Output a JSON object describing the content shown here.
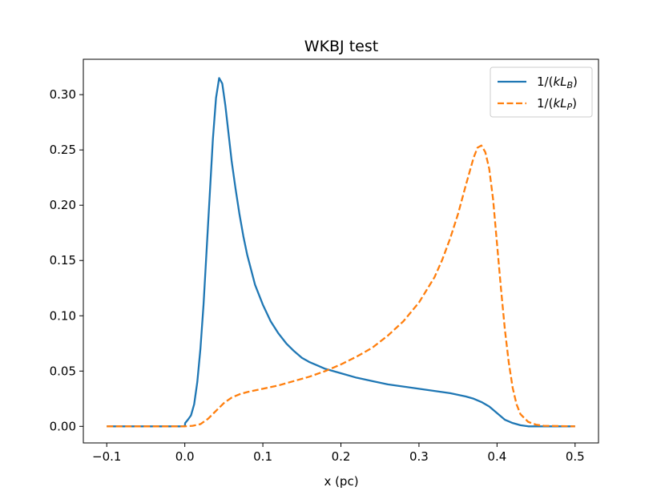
{
  "chart_data": {
    "type": "line",
    "title": "WKBJ test",
    "xlabel": "x (pc)",
    "ylabel": "",
    "xlim": [
      -0.13,
      0.53
    ],
    "ylim": [
      -0.015,
      0.332
    ],
    "x_ticks": [
      -0.1,
      0.0,
      0.1,
      0.2,
      0.3,
      0.4,
      0.5
    ],
    "x_tick_labels": [
      "−0.1",
      "0.0",
      "0.1",
      "0.2",
      "0.3",
      "0.4",
      "0.5"
    ],
    "y_ticks": [
      0.0,
      0.05,
      0.1,
      0.15,
      0.2,
      0.25,
      0.3
    ],
    "y_tick_labels": [
      "0.00",
      "0.05",
      "0.10",
      "0.15",
      "0.20",
      "0.25",
      "0.30"
    ],
    "grid": false,
    "legend_position": "top-right",
    "series": [
      {
        "name": "1/(kL_B)",
        "color": "#1f77b4",
        "dash": "solid",
        "points": [
          [
            -0.1,
            0.0
          ],
          [
            -0.05,
            0.0
          ],
          [
            0.0,
            0.0
          ],
          [
            0.0005,
            0.003
          ],
          [
            0.004,
            0.006
          ],
          [
            0.008,
            0.01
          ],
          [
            0.012,
            0.02
          ],
          [
            0.016,
            0.04
          ],
          [
            0.02,
            0.07
          ],
          [
            0.024,
            0.11
          ],
          [
            0.028,
            0.16
          ],
          [
            0.032,
            0.21
          ],
          [
            0.036,
            0.26
          ],
          [
            0.04,
            0.297
          ],
          [
            0.044,
            0.315
          ],
          [
            0.048,
            0.31
          ],
          [
            0.052,
            0.29
          ],
          [
            0.056,
            0.265
          ],
          [
            0.06,
            0.24
          ],
          [
            0.065,
            0.215
          ],
          [
            0.07,
            0.192
          ],
          [
            0.075,
            0.172
          ],
          [
            0.08,
            0.155
          ],
          [
            0.09,
            0.128
          ],
          [
            0.1,
            0.11
          ],
          [
            0.11,
            0.095
          ],
          [
            0.12,
            0.084
          ],
          [
            0.13,
            0.075
          ],
          [
            0.14,
            0.068
          ],
          [
            0.15,
            0.062
          ],
          [
            0.16,
            0.058
          ],
          [
            0.17,
            0.055
          ],
          [
            0.18,
            0.052
          ],
          [
            0.19,
            0.05
          ],
          [
            0.2,
            0.048
          ],
          [
            0.22,
            0.044
          ],
          [
            0.24,
            0.041
          ],
          [
            0.26,
            0.038
          ],
          [
            0.28,
            0.036
          ],
          [
            0.3,
            0.034
          ],
          [
            0.32,
            0.032
          ],
          [
            0.34,
            0.03
          ],
          [
            0.36,
            0.027
          ],
          [
            0.37,
            0.025
          ],
          [
            0.38,
            0.022
          ],
          [
            0.39,
            0.018
          ],
          [
            0.4,
            0.012
          ],
          [
            0.41,
            0.006
          ],
          [
            0.42,
            0.003
          ],
          [
            0.43,
            0.001
          ],
          [
            0.44,
            0.0
          ],
          [
            0.5,
            0.0
          ]
        ]
      },
      {
        "name": "1/(kL_P)",
        "color": "#ff7f0e",
        "dash": "dashed",
        "points": [
          [
            -0.1,
            0.0
          ],
          [
            0.0,
            0.0
          ],
          [
            0.01,
            0.0005
          ],
          [
            0.02,
            0.002
          ],
          [
            0.03,
            0.007
          ],
          [
            0.04,
            0.014
          ],
          [
            0.05,
            0.021
          ],
          [
            0.06,
            0.026
          ],
          [
            0.07,
            0.029
          ],
          [
            0.08,
            0.031
          ],
          [
            0.1,
            0.034
          ],
          [
            0.12,
            0.037
          ],
          [
            0.14,
            0.041
          ],
          [
            0.16,
            0.045
          ],
          [
            0.18,
            0.05
          ],
          [
            0.2,
            0.056
          ],
          [
            0.22,
            0.063
          ],
          [
            0.24,
            0.071
          ],
          [
            0.26,
            0.082
          ],
          [
            0.28,
            0.095
          ],
          [
            0.3,
            0.112
          ],
          [
            0.32,
            0.135
          ],
          [
            0.33,
            0.151
          ],
          [
            0.34,
            0.17
          ],
          [
            0.35,
            0.192
          ],
          [
            0.36,
            0.218
          ],
          [
            0.37,
            0.243
          ],
          [
            0.375,
            0.252
          ],
          [
            0.38,
            0.254
          ],
          [
            0.385,
            0.248
          ],
          [
            0.39,
            0.233
          ],
          [
            0.395,
            0.205
          ],
          [
            0.4,
            0.165
          ],
          [
            0.405,
            0.125
          ],
          [
            0.41,
            0.088
          ],
          [
            0.415,
            0.058
          ],
          [
            0.42,
            0.035
          ],
          [
            0.425,
            0.02
          ],
          [
            0.43,
            0.011
          ],
          [
            0.44,
            0.004
          ],
          [
            0.45,
            0.0015
          ],
          [
            0.46,
            0.0005
          ],
          [
            0.5,
            0.0
          ]
        ]
      }
    ],
    "legend": {
      "entries": [
        {
          "prefix": "1/(",
          "var": "kL",
          "sub": "B",
          "suffix": ")",
          "series": 0
        },
        {
          "prefix": "1/(",
          "var": "kL",
          "sub": "P",
          "suffix": ")",
          "series": 1
        }
      ]
    }
  }
}
